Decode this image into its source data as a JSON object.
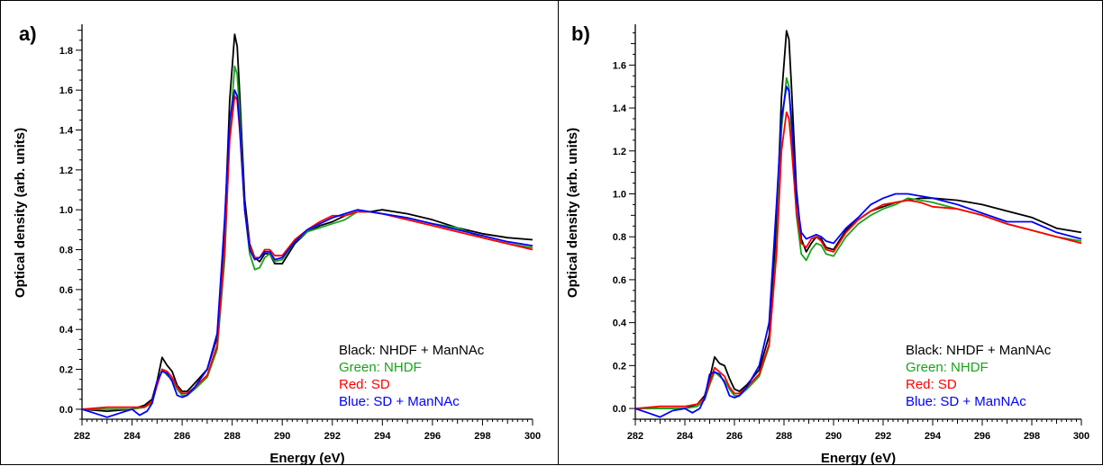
{
  "chart_data": [
    {
      "type": "line",
      "panel_label": "a)",
      "xlabel": "Energy (eV)",
      "ylabel": "Optical density (arb. units)",
      "xlim": [
        282,
        300
      ],
      "ylim": [
        -0.05,
        1.93
      ],
      "xticks": [
        282,
        284,
        286,
        288,
        290,
        292,
        294,
        296,
        298,
        300
      ],
      "yticks": [
        0.0,
        0.2,
        0.4,
        0.6,
        0.8,
        1.0,
        1.2,
        1.4,
        1.6,
        1.8
      ],
      "xtick_labels": [
        "282",
        "284",
        "286",
        "288",
        "290",
        "292",
        "294",
        "296",
        "298",
        "300"
      ],
      "ytick_labels": [
        "0.0",
        "0.2",
        "0.4",
        "0.6",
        "0.8",
        "1.0",
        "1.2",
        "1.4",
        "1.6",
        "1.8"
      ],
      "legend": {
        "placement": "bottom-right",
        "entries": [
          {
            "label": "Black: NHDF + ManNAc",
            "color": "#000000"
          },
          {
            "label": "Green: NHDF",
            "color": "#1aa31a"
          },
          {
            "label": "Red: SD",
            "color": "#ff0000"
          },
          {
            "label": "Blue: SD + ManNAc",
            "color": "#0000ff"
          }
        ]
      },
      "series": [
        {
          "color": "#000000",
          "x": [
            282,
            283,
            284,
            284.5,
            284.8,
            285.0,
            285.2,
            285.4,
            285.6,
            285.8,
            286.0,
            286.2,
            286.5,
            287.0,
            287.4,
            287.7,
            287.9,
            288.1,
            288.2,
            288.3,
            288.5,
            288.7,
            288.9,
            289.1,
            289.3,
            289.5,
            289.7,
            290.0,
            290.5,
            291,
            291.5,
            292,
            292.5,
            293,
            293.5,
            294,
            295,
            296,
            297,
            298,
            299,
            300
          ],
          "y": [
            0.0,
            -0.01,
            0.0,
            0.02,
            0.05,
            0.14,
            0.26,
            0.22,
            0.19,
            0.12,
            0.09,
            0.09,
            0.13,
            0.2,
            0.36,
            0.9,
            1.55,
            1.88,
            1.82,
            1.58,
            1.05,
            0.83,
            0.76,
            0.74,
            0.78,
            0.78,
            0.73,
            0.73,
            0.83,
            0.89,
            0.92,
            0.94,
            0.97,
            0.99,
            0.99,
            1.0,
            0.98,
            0.95,
            0.91,
            0.88,
            0.86,
            0.85
          ]
        },
        {
          "color": "#1aa31a",
          "x": [
            282,
            283,
            284,
            284.5,
            284.8,
            285.0,
            285.2,
            285.4,
            285.6,
            285.8,
            286.0,
            286.2,
            286.5,
            287.0,
            287.4,
            287.7,
            287.9,
            288.1,
            288.2,
            288.3,
            288.5,
            288.7,
            288.9,
            289.1,
            289.3,
            289.5,
            289.7,
            290.0,
            290.5,
            291,
            291.5,
            292,
            292.5,
            293,
            293.5,
            294,
            295,
            296,
            297,
            298,
            299,
            300
          ],
          "y": [
            0.0,
            0.0,
            0.0,
            0.01,
            0.03,
            0.12,
            0.2,
            0.17,
            0.15,
            0.1,
            0.07,
            0.07,
            0.1,
            0.16,
            0.3,
            0.75,
            1.38,
            1.72,
            1.68,
            1.48,
            1.0,
            0.78,
            0.7,
            0.71,
            0.76,
            0.78,
            0.74,
            0.75,
            0.84,
            0.89,
            0.91,
            0.93,
            0.95,
            0.99,
            0.99,
            0.98,
            0.96,
            0.93,
            0.91,
            0.86,
            0.83,
            0.81
          ]
        },
        {
          "color": "#ff0000",
          "x": [
            282,
            283,
            284,
            284.5,
            284.8,
            285.0,
            285.2,
            285.4,
            285.6,
            285.8,
            286.0,
            286.2,
            286.5,
            287.0,
            287.4,
            287.7,
            287.9,
            288.1,
            288.2,
            288.3,
            288.5,
            288.7,
            288.9,
            289.1,
            289.3,
            289.5,
            289.7,
            290.0,
            290.5,
            291,
            291.5,
            292,
            292.5,
            293,
            293.5,
            294,
            295,
            296,
            297,
            298,
            299,
            300
          ],
          "y": [
            0.0,
            0.01,
            0.01,
            0.01,
            0.04,
            0.12,
            0.2,
            0.19,
            0.16,
            0.11,
            0.08,
            0.08,
            0.11,
            0.17,
            0.32,
            0.8,
            1.35,
            1.57,
            1.55,
            1.4,
            1.0,
            0.82,
            0.76,
            0.76,
            0.8,
            0.8,
            0.77,
            0.77,
            0.85,
            0.9,
            0.94,
            0.97,
            0.97,
            0.99,
            0.99,
            0.98,
            0.95,
            0.92,
            0.89,
            0.86,
            0.83,
            0.8
          ]
        },
        {
          "color": "#0000ff",
          "x": [
            282,
            282.5,
            283,
            283.5,
            284,
            284.3,
            284.6,
            284.8,
            285.0,
            285.2,
            285.4,
            285.6,
            285.8,
            286.0,
            286.2,
            286.5,
            287.0,
            287.4,
            287.7,
            287.9,
            288.1,
            288.2,
            288.3,
            288.5,
            288.7,
            288.9,
            289.1,
            289.3,
            289.5,
            289.7,
            290.0,
            290.5,
            291,
            291.5,
            292,
            292.5,
            293,
            293.5,
            294,
            295,
            296,
            297,
            298,
            299,
            300
          ],
          "y": [
            0.0,
            -0.02,
            -0.04,
            -0.02,
            0.0,
            -0.03,
            -0.01,
            0.03,
            0.14,
            0.19,
            0.18,
            0.14,
            0.07,
            0.06,
            0.07,
            0.11,
            0.2,
            0.38,
            0.95,
            1.45,
            1.6,
            1.57,
            1.42,
            1.0,
            0.8,
            0.75,
            0.76,
            0.79,
            0.79,
            0.75,
            0.76,
            0.84,
            0.9,
            0.93,
            0.96,
            0.98,
            1.0,
            0.99,
            0.98,
            0.96,
            0.93,
            0.9,
            0.87,
            0.84,
            0.82
          ]
        }
      ]
    },
    {
      "type": "line",
      "panel_label": "b)",
      "xlabel": "Energy (eV)",
      "ylabel": "Optical density (arb. units)",
      "xlim": [
        282,
        300
      ],
      "ylim": [
        -0.05,
        1.79
      ],
      "xticks": [
        282,
        284,
        286,
        288,
        290,
        292,
        294,
        296,
        298,
        300
      ],
      "yticks": [
        0.0,
        0.2,
        0.4,
        0.6,
        0.8,
        1.0,
        1.2,
        1.4,
        1.6
      ],
      "xtick_labels": [
        "282",
        "284",
        "286",
        "288",
        "290",
        "292",
        "294",
        "296",
        "298",
        "300"
      ],
      "ytick_labels": [
        "0.0",
        "0.2",
        "0.4",
        "0.6",
        "0.8",
        "1.0",
        "1.2",
        "1.4",
        "1.6"
      ],
      "legend": {
        "placement": "bottom-right",
        "entries": [
          {
            "label": "Black: NHDF + ManNAc",
            "color": "#000000"
          },
          {
            "label": "Green: NHDF",
            "color": "#1aa31a"
          },
          {
            "label": "Red: SD",
            "color": "#ff0000"
          },
          {
            "label": "Blue: SD + ManNAc",
            "color": "#0000ff"
          }
        ]
      },
      "series": [
        {
          "color": "#000000",
          "x": [
            282,
            283,
            284,
            284.5,
            284.8,
            285.0,
            285.2,
            285.4,
            285.6,
            285.8,
            286.0,
            286.2,
            286.5,
            287.0,
            287.4,
            287.7,
            287.9,
            288.1,
            288.2,
            288.3,
            288.5,
            288.7,
            288.9,
            289.1,
            289.3,
            289.5,
            289.7,
            290.0,
            290.5,
            291,
            291.5,
            292,
            292.5,
            293,
            293.5,
            294,
            295,
            296,
            297,
            298,
            299,
            300
          ],
          "y": [
            0.0,
            0.0,
            0.0,
            0.02,
            0.06,
            0.14,
            0.24,
            0.21,
            0.2,
            0.14,
            0.09,
            0.08,
            0.11,
            0.18,
            0.34,
            0.85,
            1.45,
            1.76,
            1.72,
            1.5,
            1.02,
            0.79,
            0.73,
            0.77,
            0.8,
            0.79,
            0.75,
            0.74,
            0.83,
            0.88,
            0.92,
            0.94,
            0.96,
            0.97,
            0.98,
            0.98,
            0.97,
            0.95,
            0.92,
            0.89,
            0.84,
            0.82
          ]
        },
        {
          "color": "#1aa31a",
          "x": [
            282,
            283,
            284,
            284.5,
            284.8,
            285.0,
            285.2,
            285.4,
            285.6,
            285.8,
            286.0,
            286.2,
            286.5,
            287.0,
            287.4,
            287.7,
            287.9,
            288.1,
            288.2,
            288.3,
            288.5,
            288.7,
            288.9,
            289.1,
            289.3,
            289.5,
            289.7,
            290.0,
            290.5,
            291,
            291.5,
            292,
            292.5,
            293,
            293.5,
            294,
            295,
            296,
            297,
            298,
            299,
            300
          ],
          "y": [
            0.0,
            0.0,
            0.0,
            0.01,
            0.04,
            0.11,
            0.17,
            0.15,
            0.13,
            0.09,
            0.06,
            0.06,
            0.09,
            0.15,
            0.29,
            0.75,
            1.3,
            1.54,
            1.5,
            1.3,
            0.9,
            0.72,
            0.69,
            0.74,
            0.77,
            0.76,
            0.72,
            0.71,
            0.8,
            0.86,
            0.9,
            0.93,
            0.95,
            0.98,
            0.97,
            0.96,
            0.93,
            0.9,
            0.86,
            0.83,
            0.8,
            0.78
          ]
        },
        {
          "color": "#ff0000",
          "x": [
            282,
            283,
            284,
            284.5,
            284.8,
            285.0,
            285.2,
            285.4,
            285.6,
            285.8,
            286.0,
            286.2,
            286.5,
            287.0,
            287.4,
            287.7,
            287.9,
            288.1,
            288.2,
            288.3,
            288.5,
            288.7,
            288.9,
            289.1,
            289.3,
            289.5,
            289.7,
            290.0,
            290.5,
            291,
            291.5,
            292,
            292.5,
            293,
            293.5,
            294,
            295,
            296,
            297,
            298,
            299,
            300
          ],
          "y": [
            0.0,
            0.01,
            0.01,
            0.02,
            0.05,
            0.12,
            0.19,
            0.17,
            0.15,
            0.1,
            0.07,
            0.07,
            0.1,
            0.16,
            0.3,
            0.72,
            1.2,
            1.38,
            1.35,
            1.22,
            0.92,
            0.77,
            0.75,
            0.79,
            0.8,
            0.78,
            0.74,
            0.73,
            0.82,
            0.88,
            0.92,
            0.95,
            0.96,
            0.97,
            0.96,
            0.94,
            0.93,
            0.9,
            0.86,
            0.83,
            0.8,
            0.77
          ]
        },
        {
          "color": "#0000ff",
          "x": [
            282,
            282.5,
            283,
            283.5,
            284,
            284.3,
            284.6,
            284.8,
            285.0,
            285.2,
            285.4,
            285.6,
            285.8,
            286.0,
            286.2,
            286.5,
            287.0,
            287.4,
            287.7,
            287.9,
            288.1,
            288.2,
            288.3,
            288.5,
            288.7,
            288.9,
            289.1,
            289.3,
            289.5,
            289.7,
            290.0,
            290.5,
            291,
            291.5,
            292,
            292.5,
            293,
            293.5,
            294,
            295,
            296,
            297,
            298,
            299,
            300
          ],
          "y": [
            0.0,
            -0.02,
            -0.04,
            -0.01,
            0.0,
            -0.02,
            0.0,
            0.05,
            0.16,
            0.17,
            0.16,
            0.12,
            0.06,
            0.05,
            0.06,
            0.1,
            0.2,
            0.4,
            0.95,
            1.35,
            1.5,
            1.48,
            1.35,
            0.98,
            0.82,
            0.79,
            0.8,
            0.81,
            0.8,
            0.78,
            0.77,
            0.84,
            0.89,
            0.95,
            0.98,
            1.0,
            1.0,
            0.99,
            0.98,
            0.95,
            0.91,
            0.87,
            0.87,
            0.82,
            0.79
          ]
        }
      ]
    }
  ]
}
